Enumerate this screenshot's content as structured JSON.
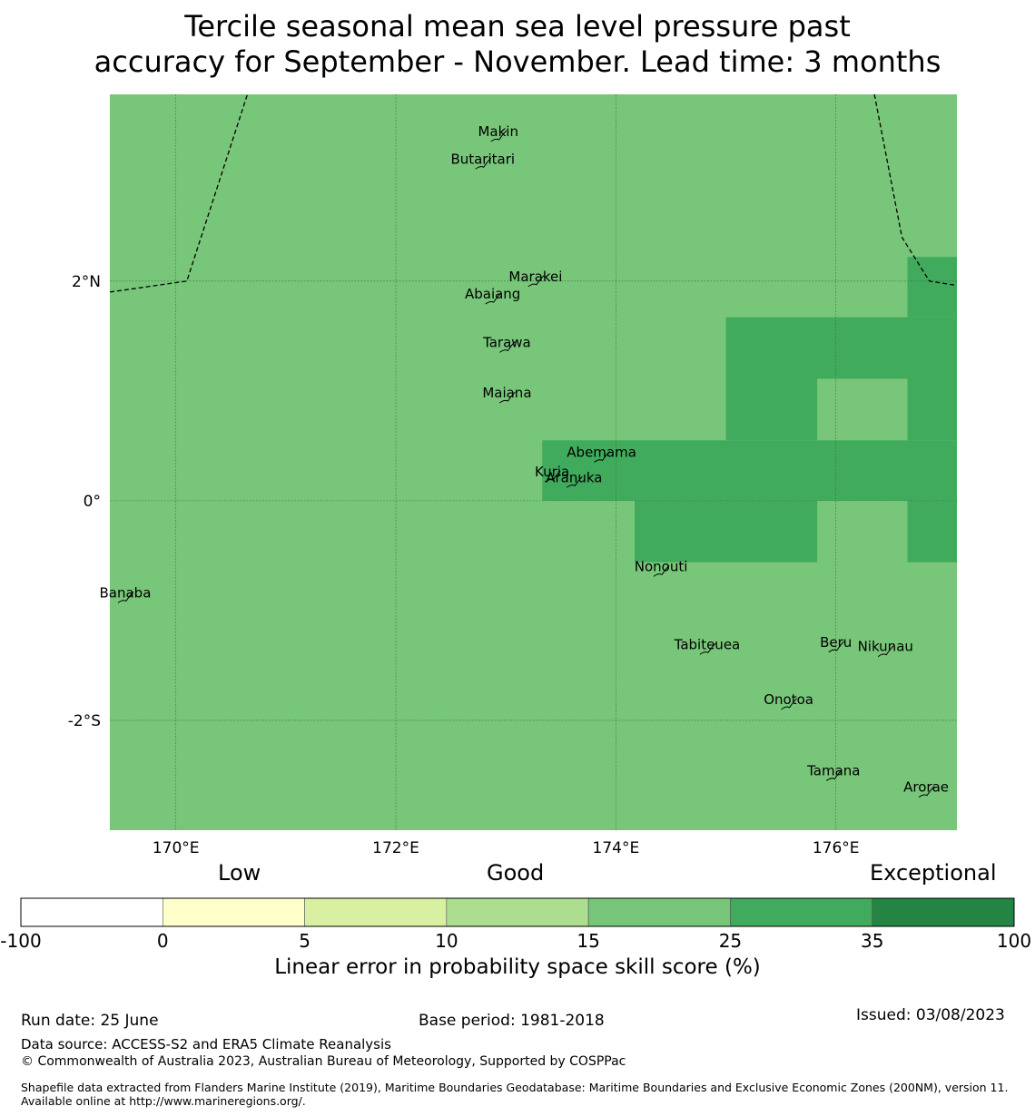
{
  "title": "Tercile seasonal mean sea level pressure past\naccuracy for September - November. Lead time: 3 months",
  "colors": {
    "land_sea_base": "#78c679",
    "high_cells": "#41ab5d",
    "outline": "#000000"
  },
  "map": {
    "lon_range": [
      169.4,
      177.1
    ],
    "lat_range": [
      -3.0,
      3.7
    ],
    "lon_ticks": [
      {
        "value": 170,
        "label": "170°E"
      },
      {
        "value": 172,
        "label": "172°E"
      },
      {
        "value": 174,
        "label": "174°E"
      },
      {
        "value": 176,
        "label": "176°E"
      }
    ],
    "lat_ticks": [
      {
        "value": 2,
        "label": "2°N"
      },
      {
        "value": 0,
        "label": "0°"
      },
      {
        "value": -2,
        "label": "-2°S"
      }
    ],
    "skill_cells_35": [
      {
        "lon": [
          175.0,
          177.1
        ],
        "lat": [
          0.55,
          1.67
        ]
      },
      {
        "lon": [
          176.65,
          177.1
        ],
        "lat": [
          1.67,
          2.22
        ]
      },
      {
        "lon": [
          173.33,
          177.1
        ],
        "lat": [
          0.0,
          0.55
        ]
      },
      {
        "lon": [
          174.17,
          175.83
        ],
        "lat": [
          -0.56,
          0.0
        ]
      },
      {
        "lon": [
          176.65,
          177.1
        ],
        "lat": [
          -0.56,
          0.0
        ]
      }
    ],
    "skill_cells_25_inside": [
      {
        "lon": [
          175.83,
          176.65
        ],
        "lat": [
          0.55,
          1.11
        ]
      }
    ],
    "boundary": [
      [
        169.4,
        1.9
      ],
      [
        170.1,
        2.0
      ],
      [
        170.65,
        3.7
      ]
    ],
    "boundary2": [
      [
        176.35,
        3.7
      ],
      [
        176.6,
        2.4
      ],
      [
        176.85,
        2.0
      ],
      [
        177.1,
        1.96
      ]
    ],
    "islands": [
      {
        "name": "Makin",
        "lon": 172.93,
        "lat": 3.32
      },
      {
        "name": "Butaritari",
        "lon": 172.79,
        "lat": 3.07
      },
      {
        "name": "Marakei",
        "lon": 173.27,
        "lat": 2.0
      },
      {
        "name": "Abaiang",
        "lon": 172.88,
        "lat": 1.84
      },
      {
        "name": "Tarawa",
        "lon": 173.01,
        "lat": 1.4
      },
      {
        "name": "Maiana",
        "lon": 173.01,
        "lat": 0.94
      },
      {
        "name": "Abemama",
        "lon": 173.87,
        "lat": 0.4
      },
      {
        "name": "Kuria",
        "lon": 173.42,
        "lat": 0.22
      },
      {
        "name": "Aranuka",
        "lon": 173.62,
        "lat": 0.17
      },
      {
        "name": "Nonouti",
        "lon": 174.41,
        "lat": -0.64
      },
      {
        "name": "Banaba",
        "lon": 169.54,
        "lat": -0.88
      },
      {
        "name": "Tabiteuea",
        "lon": 174.83,
        "lat": -1.35
      },
      {
        "name": "Beru",
        "lon": 176.0,
        "lat": -1.33
      },
      {
        "name": "Nikunau",
        "lon": 176.45,
        "lat": -1.37
      },
      {
        "name": "Onotoa",
        "lon": 175.57,
        "lat": -1.85
      },
      {
        "name": "Tamana",
        "lon": 175.98,
        "lat": -2.5
      },
      {
        "name": "Arorae",
        "lon": 176.82,
        "lat": -2.65
      }
    ]
  },
  "colorbar": {
    "category_labels": [
      "Low",
      "Good",
      "Exceptional"
    ],
    "bins": [
      {
        "from": "-100",
        "to": "0",
        "color": "#ffffff"
      },
      {
        "from": "0",
        "to": "5",
        "color": "#ffffcc"
      },
      {
        "from": "5",
        "to": "10",
        "color": "#d9f0a3"
      },
      {
        "from": "10",
        "to": "15",
        "color": "#addd8e"
      },
      {
        "from": "15",
        "to": "25",
        "color": "#78c679"
      },
      {
        "from": "25",
        "to": "35",
        "color": "#41ab5d"
      },
      {
        "from": "35",
        "to": "100",
        "color": "#238443"
      }
    ],
    "tick_labels": [
      "-100",
      "0",
      "5",
      "10",
      "15",
      "25",
      "35",
      "100"
    ],
    "title": "Linear error in probability space skill score (%)"
  },
  "footer": {
    "run_date": "Run date: 25 June",
    "base_period": "Base period: 1981-2018",
    "issued": "Issued: 03/08/2023",
    "data_source": "Data source: ACCESS-S2 and ERA5 Climate Reanalysis",
    "copyright": "© Commonwealth of Australia 2023, Australian Bureau of Meteorology, Supported by COSPPac",
    "shapefile": "Shapefile data extracted from Flanders Marine Institute (2019), Maritime Boundaries Geodatabase: Maritime Boundaries and Exclusive Economic Zones (200NM), version 11. Available online at http://www.marineregions.org/."
  }
}
